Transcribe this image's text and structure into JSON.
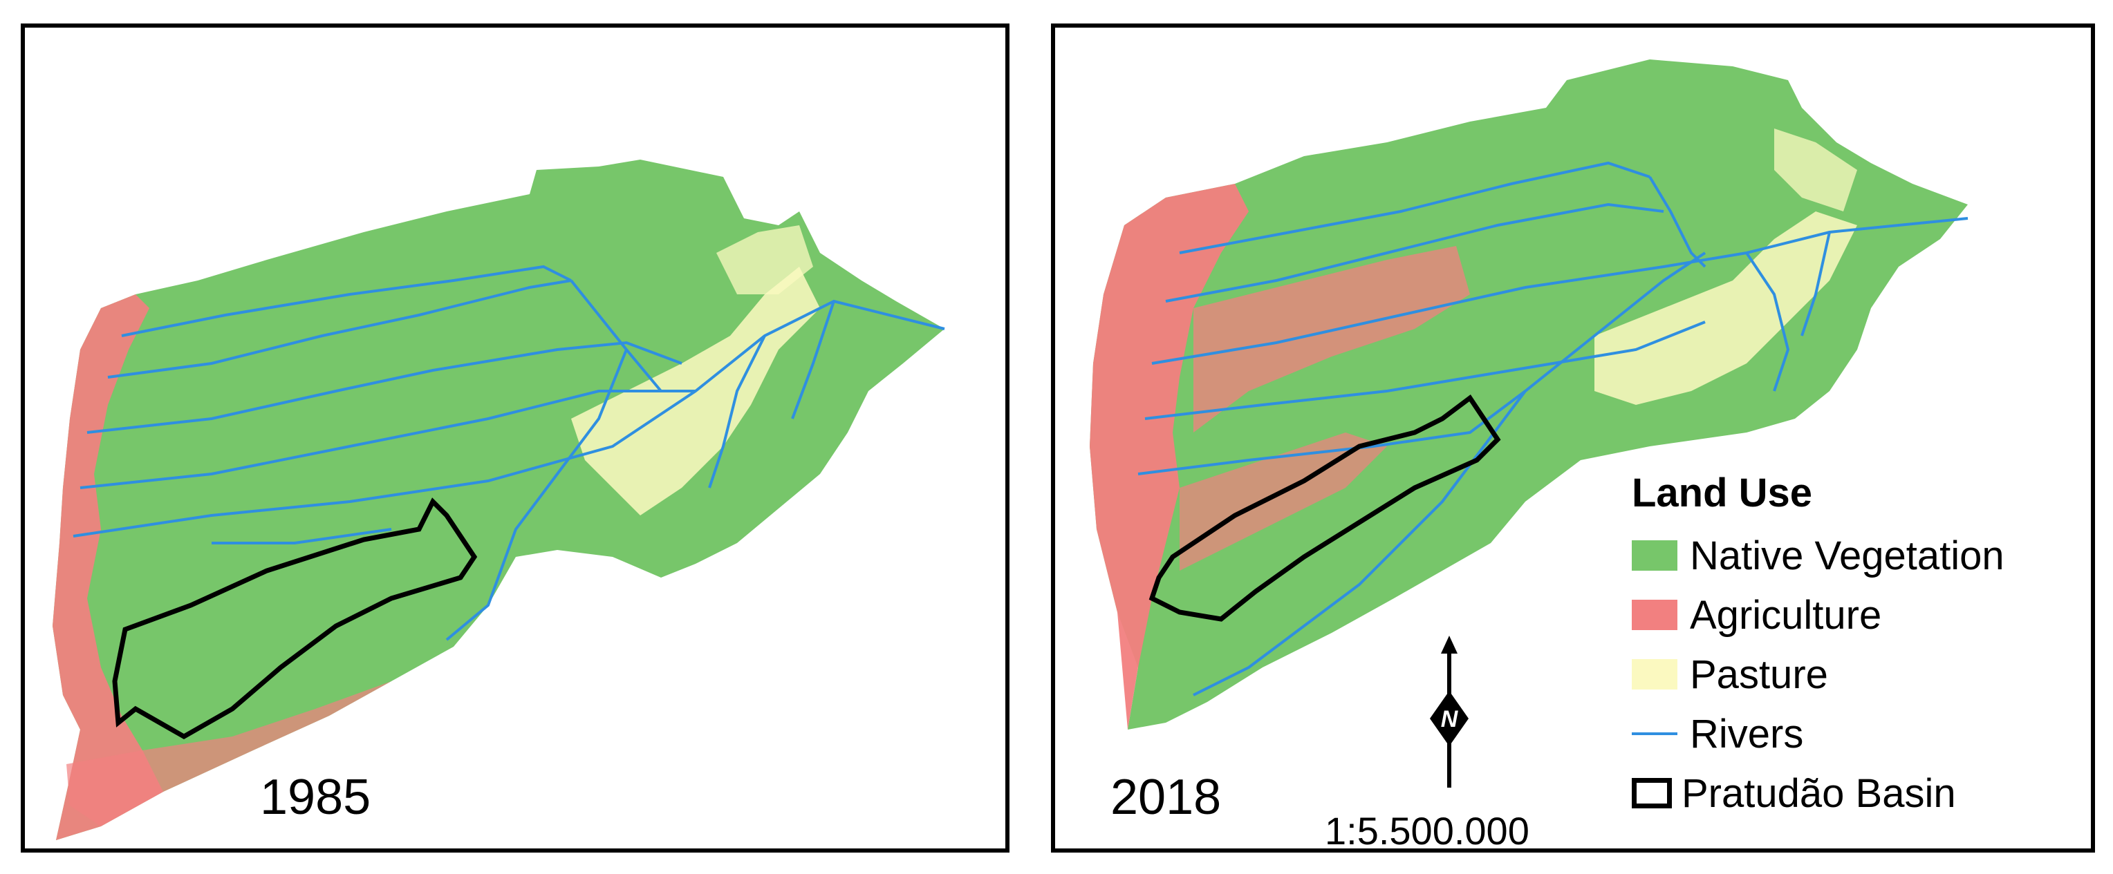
{
  "panels": [
    {
      "year_label": "1985"
    },
    {
      "year_label": "2018"
    }
  ],
  "legend": {
    "title": "Land Use",
    "items": [
      {
        "label": "Native Vegetation",
        "color": "#77c66a",
        "kind": "fill"
      },
      {
        "label": "Agriculture",
        "color": "#f28080",
        "kind": "fill"
      },
      {
        "label": "Pasture",
        "color": "#fbf9c0",
        "kind": "fill"
      },
      {
        "label": "Rivers",
        "color": "#2f8fe0",
        "kind": "line"
      },
      {
        "label": "Pratudão Basin",
        "color": "#000000",
        "kind": "outline"
      }
    ]
  },
  "scale_label": "1:5.500.000",
  "north_label": "N",
  "colors": {
    "native_vegetation": "#77c66a",
    "agriculture": "#f28080",
    "pasture": "#fbf9c0",
    "rivers": "#2f8fe0",
    "basin_outline": "#000000"
  }
}
